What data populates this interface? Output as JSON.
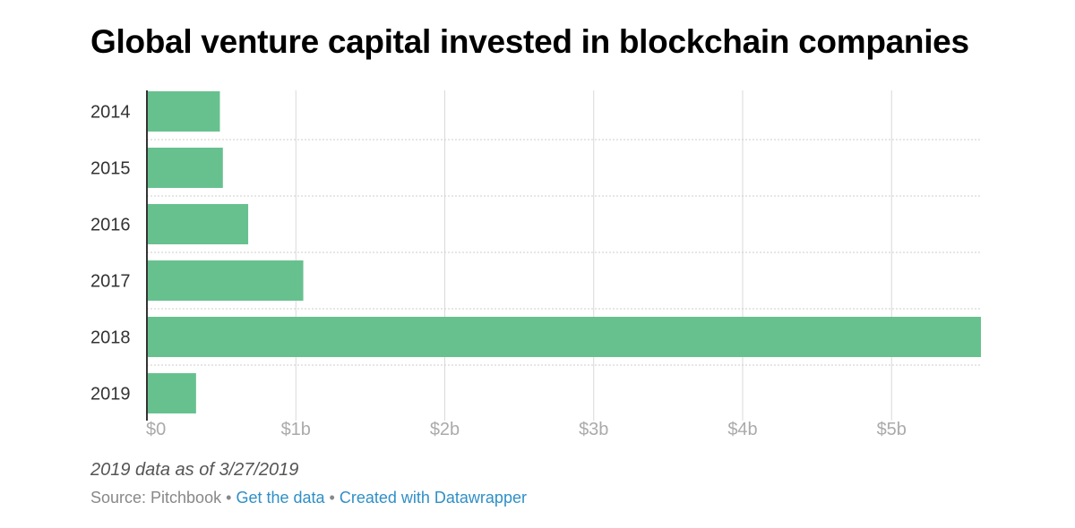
{
  "chart_data": {
    "type": "bar",
    "orientation": "horizontal",
    "title": "Global venture capital invested in blockchain companies",
    "categories": [
      "2014",
      "2015",
      "2016",
      "2017",
      "2018",
      "2019"
    ],
    "values": [
      0.49,
      0.51,
      0.68,
      1.05,
      5.6,
      0.33
    ],
    "unit": "USD billions",
    "xlim": [
      0,
      5.6
    ],
    "xticks": [
      0,
      1,
      2,
      3,
      4,
      5
    ],
    "xtick_labels": [
      "$0",
      "$1b",
      "$2b",
      "$3b",
      "$4b",
      "$5b"
    ],
    "xlabel": "",
    "ylabel": "",
    "grid": true,
    "bar_color": "#67c18f"
  },
  "notes": {
    "caption": "2019 data as of 3/27/2019",
    "source": "Source: Pitchbook",
    "separator": "•",
    "get_data": "Get the data",
    "created_with": "Created with Datawrapper"
  },
  "colors": {
    "bar": "#67c18f",
    "gridline": "#d9d9d9",
    "axis": "#333333",
    "link": "#2f8fc6"
  }
}
